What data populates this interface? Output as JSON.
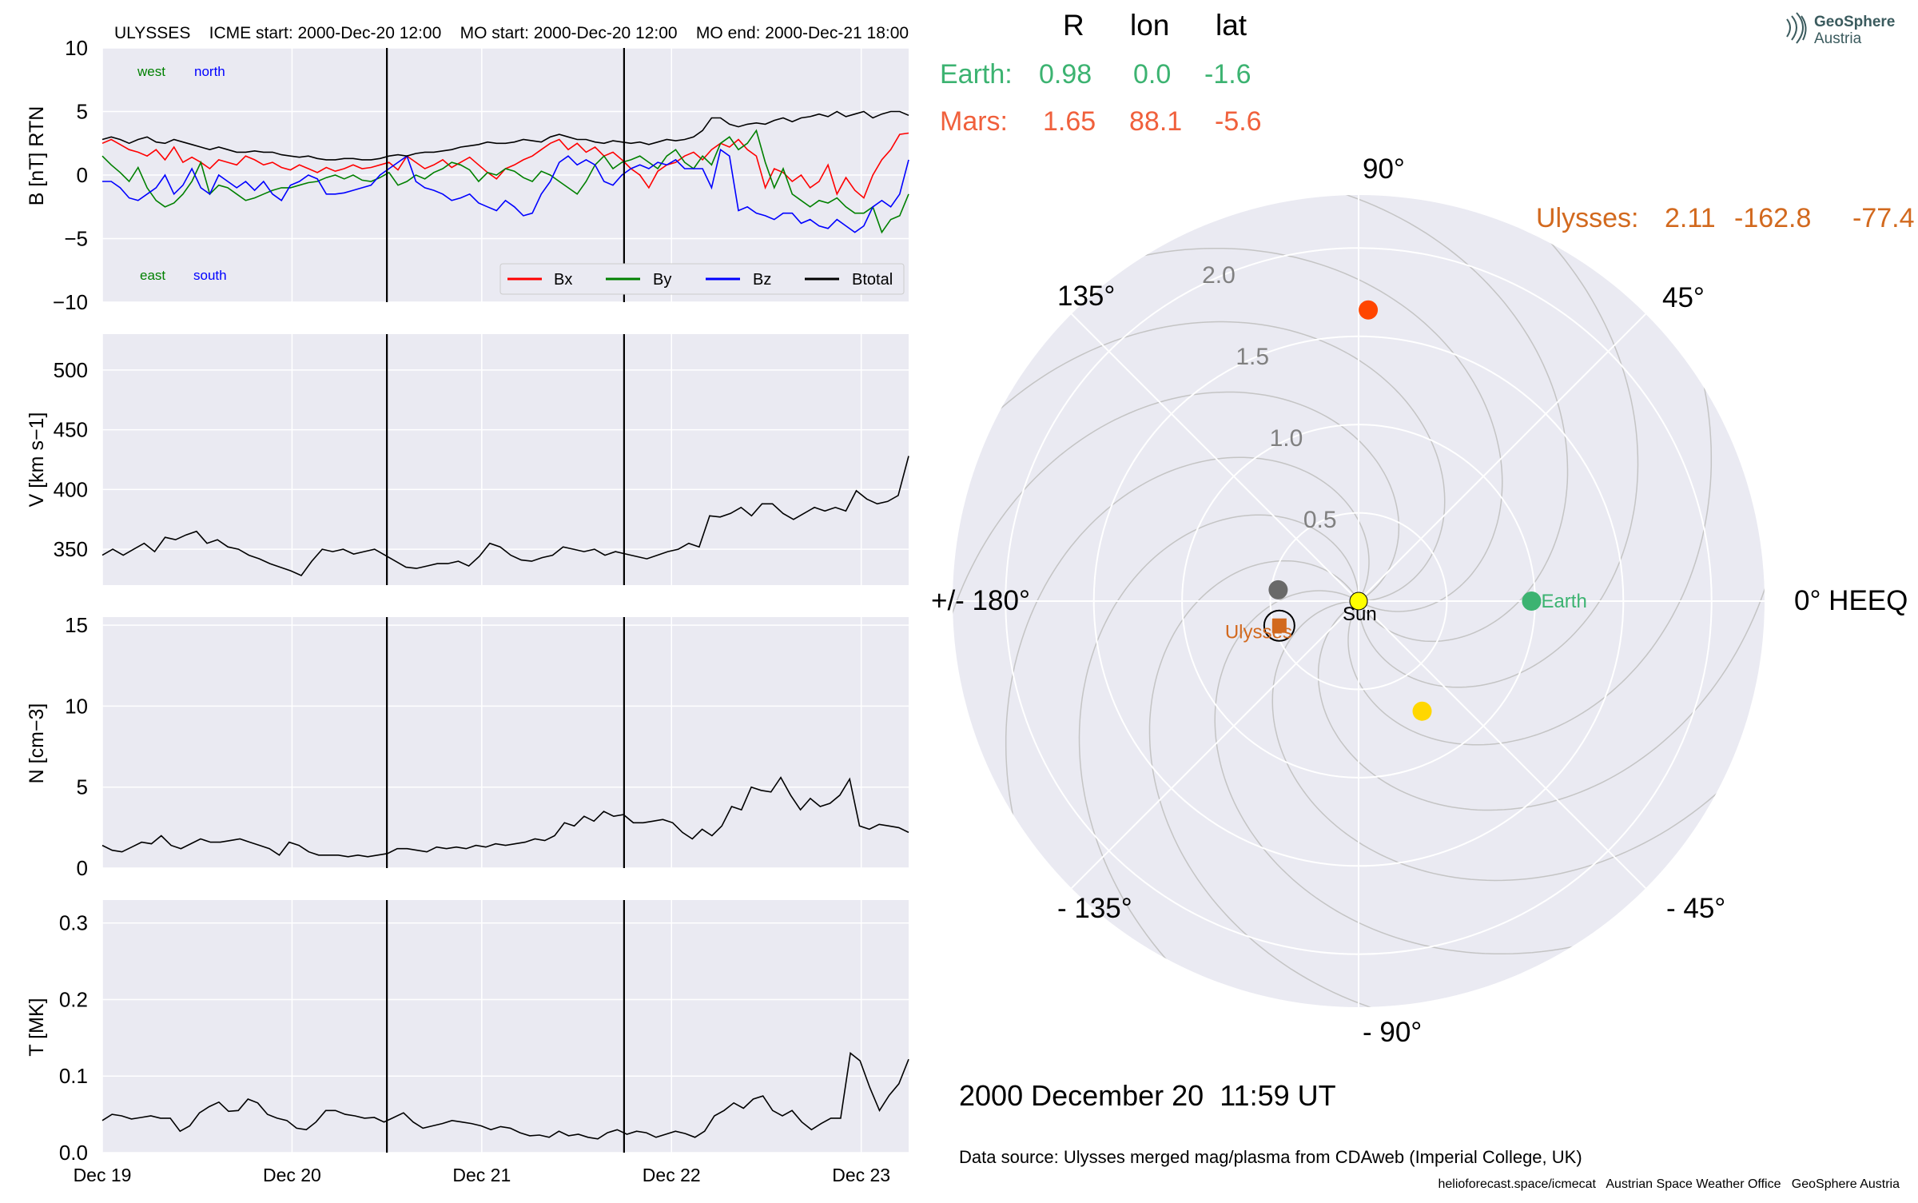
{
  "header": {
    "title": "ULYSSES    ICME start: 2000-Dec-20 12:00    MO start: 2000-Dec-20 12:00    MO end: 2000-Dec-21 18:00"
  },
  "logo": {
    "line1": "GeoSphere",
    "line2": "Austria"
  },
  "position_table": {
    "columns": [
      "R",
      "lon",
      "lat"
    ],
    "earth": {
      "label": "Earth:",
      "R": "0.98",
      "lon": "0.0",
      "lat": "-1.6",
      "color": "#3cb371"
    },
    "mars": {
      "label": "Mars:",
      "R": "1.65",
      "lon": "88.1",
      "lat": "-5.6",
      "color": "#f0603c"
    },
    "ulysses": {
      "label": "Ulysses:",
      "R": "2.11",
      "lon": "-162.8",
      "lat": "-77.4",
      "color": "#d2691e"
    }
  },
  "date_label": "2000 December 20  11:59 UT",
  "data_source": "Data source: Ulysses merged mag/plasma from CDAweb (Imperial College, UK)",
  "footer": "helioforecast.space/icmecat   Austrian Space Weather Office   GeoSphere Austria",
  "colors": {
    "panel_bg": "#eaeaf2",
    "grid": "#ffffff",
    "bx": "#ff0000",
    "by": "#008000",
    "bz": "#0000ff",
    "btotal": "#000000"
  },
  "chart_data": [
    {
      "type": "line",
      "ylabel": "B [nT] RTN",
      "ylim": [
        -10,
        10
      ],
      "yticks": [
        "10",
        "5",
        "0",
        "−5",
        "−10"
      ],
      "corner_labels": [
        "west",
        "north",
        "east",
        "south"
      ],
      "legend": [
        "Bx",
        "By",
        "Bz",
        "Btotal"
      ],
      "legend_placement": "lower-right",
      "xlim_days": "2000-12-19 00:00 to 2000-12-23 06:00",
      "vertical_lines": [
        "2000-12-20 12:00",
        "2000-12-21 18:00"
      ],
      "x": "hourly-ish samples 2000-12-19 to 2000-12-23",
      "series": [
        {
          "name": "Bx",
          "values": [
            2.5,
            2.8,
            2.4,
            2.0,
            1.8,
            1.5,
            2.0,
            1.2,
            2.2,
            1.0,
            1.4,
            1.0,
            0.5,
            1.2,
            1.0,
            0.8,
            1.5,
            1.2,
            0.8,
            1.0,
            0.6,
            0.4,
            0.8,
            0.5,
            0.2,
            0.6,
            0.3,
            0.5,
            0.8,
            0.5,
            0.6,
            0.8,
            1.0,
            0.4,
            1.5,
            1.0,
            0.5,
            0.8,
            1.2,
            0.6,
            1.0,
            1.4,
            0.8,
            0.2,
            -0.3,
            0.5,
            0.8,
            1.2,
            1.5,
            2.0,
            2.5,
            2.8,
            2.0,
            2.5,
            1.8,
            2.2,
            1.5,
            1.8,
            1.2,
            0.5,
            0.0,
            -1.0,
            0.3,
            0.8,
            1.0,
            1.5,
            1.8,
            1.2,
            2.0,
            2.5,
            2.2,
            2.8,
            2.0,
            1.5,
            -1.0,
            0.5,
            0.2,
            -0.5,
            0.0,
            -1.0,
            -0.5,
            0.8,
            -1.5,
            -0.2,
            -1.2,
            -1.8,
            0.0,
            1.2,
            2.0,
            3.2,
            3.3
          ]
        },
        {
          "name": "By",
          "values": [
            1.5,
            0.8,
            0.2,
            -0.5,
            0.6,
            -1.0,
            -2.0,
            -2.5,
            -2.2,
            -1.5,
            -0.5,
            1.0,
            -1.5,
            -0.8,
            -1.0,
            -1.5,
            -2.0,
            -1.8,
            -1.5,
            -1.2,
            -1.0,
            -1.0,
            -0.8,
            -0.6,
            -0.5,
            -0.2,
            0.0,
            -0.3,
            0.0,
            -0.4,
            -0.5,
            -0.2,
            0.2,
            -0.8,
            -0.5,
            0.0,
            -0.3,
            0.2,
            0.5,
            1.0,
            0.8,
            0.4,
            -0.5,
            0.2,
            0.0,
            0.5,
            0.3,
            -0.2,
            -0.5,
            0.3,
            0.0,
            -0.5,
            -1.0,
            -1.5,
            -0.5,
            0.8,
            1.5,
            0.5,
            1.0,
            1.2,
            1.5,
            1.0,
            0.5,
            1.5,
            2.0,
            1.0,
            0.5,
            1.5,
            0.8,
            2.5,
            3.0,
            2.0,
            2.5,
            3.5,
            1.0,
            -1.0,
            0.5,
            -1.5,
            -2.0,
            -2.5,
            -2.0,
            -2.2,
            -1.8,
            -2.5,
            -3.0,
            -3.0,
            -2.5,
            -4.5,
            -3.5,
            -3.2,
            -1.5
          ]
        },
        {
          "name": "Bz",
          "values": [
            -0.5,
            -0.5,
            -1.0,
            -1.8,
            -2.0,
            -1.5,
            -1.0,
            0.0,
            -1.5,
            -0.8,
            0.5,
            -1.0,
            -1.5,
            0.0,
            -0.5,
            -1.0,
            -0.5,
            -1.2,
            -0.5,
            -1.5,
            -2.0,
            -0.8,
            -0.5,
            0.0,
            -0.3,
            -1.5,
            -1.5,
            -1.4,
            -1.2,
            -1.0,
            -0.8,
            0.0,
            0.5,
            1.0,
            1.5,
            -0.5,
            -1.0,
            -1.2,
            -1.5,
            -2.0,
            -1.8,
            -1.5,
            -2.2,
            -2.5,
            -2.8,
            -2.0,
            -2.5,
            -3.2,
            -3.0,
            -1.5,
            -0.5,
            1.0,
            1.5,
            0.8,
            1.2,
            0.8,
            -0.5,
            -0.8,
            0.0,
            0.5,
            0.8,
            0.5,
            1.0,
            0.8,
            1.2,
            0.5,
            0.5,
            0.5,
            -1.0,
            2.0,
            1.5,
            -2.8,
            -2.5,
            -3.0,
            -3.2,
            -3.5,
            -3.0,
            -3.0,
            -3.8,
            -3.5,
            -4.0,
            -4.2,
            -3.5,
            -4.0,
            -4.5,
            -4.0,
            -2.5,
            -2.0,
            -2.5,
            -1.5,
            1.2
          ]
        },
        {
          "name": "Btotal",
          "values": [
            2.8,
            3.0,
            2.8,
            2.5,
            2.8,
            3.0,
            2.6,
            2.5,
            2.8,
            2.6,
            2.4,
            2.2,
            2.0,
            2.2,
            2.0,
            1.8,
            1.8,
            1.9,
            1.8,
            1.8,
            1.6,
            1.5,
            1.4,
            1.5,
            1.3,
            1.2,
            1.2,
            1.3,
            1.3,
            1.2,
            1.2,
            1.3,
            1.5,
            1.6,
            1.5,
            1.7,
            1.8,
            1.8,
            1.9,
            2.0,
            2.2,
            2.3,
            2.4,
            2.6,
            2.5,
            2.5,
            2.6,
            2.8,
            2.7,
            2.6,
            3.0,
            3.2,
            3.0,
            2.8,
            2.8,
            2.6,
            2.5,
            2.7,
            2.6,
            2.5,
            2.6,
            2.4,
            2.6,
            2.8,
            2.7,
            2.8,
            3.0,
            3.5,
            4.5,
            4.5,
            4.0,
            3.8,
            4.0,
            4.1,
            4.0,
            4.3,
            4.5,
            4.2,
            4.5,
            4.6,
            4.8,
            4.6,
            5.0,
            4.6,
            4.8,
            5.0,
            4.5,
            4.8,
            5.0,
            5.0,
            4.7
          ]
        }
      ]
    },
    {
      "type": "line",
      "ylabel": "V [km s−1]",
      "ylim": [
        320,
        530
      ],
      "yticks": [
        "500",
        "450",
        "400",
        "350"
      ],
      "series": [
        {
          "name": "V",
          "values": [
            345,
            350,
            345,
            350,
            355,
            348,
            360,
            358,
            362,
            365,
            355,
            358,
            352,
            350,
            345,
            342,
            338,
            335,
            332,
            328,
            340,
            350,
            348,
            350,
            346,
            348,
            350,
            345,
            340,
            335,
            334,
            336,
            338,
            338,
            340,
            336,
            344,
            355,
            352,
            345,
            341,
            340,
            343,
            345,
            352,
            350,
            348,
            350,
            345,
            348,
            346,
            344,
            342,
            345,
            348,
            350,
            355,
            352,
            378,
            377,
            380,
            385,
            378,
            388,
            388,
            380,
            375,
            380,
            385,
            382,
            385,
            382,
            399,
            392,
            388,
            390,
            395,
            428
          ]
        }
      ]
    },
    {
      "type": "line",
      "ylabel": "N [cm−3]",
      "ylim": [
        0,
        15.5
      ],
      "yticks": [
        "15",
        "10",
        "5",
        "0"
      ],
      "series": [
        {
          "name": "N",
          "values": [
            1.4,
            1.1,
            1.0,
            1.3,
            1.6,
            1.5,
            2.0,
            1.4,
            1.2,
            1.5,
            1.8,
            1.6,
            1.6,
            1.7,
            1.8,
            1.6,
            1.4,
            1.2,
            0.8,
            1.6,
            1.4,
            1.0,
            0.8,
            0.8,
            0.8,
            0.7,
            0.8,
            0.7,
            0.8,
            0.9,
            1.2,
            1.2,
            1.1,
            1.0,
            1.3,
            1.2,
            1.3,
            1.2,
            1.4,
            1.3,
            1.5,
            1.4,
            1.5,
            1.6,
            1.8,
            1.7,
            2.0,
            2.8,
            2.6,
            3.2,
            2.9,
            3.5,
            3.2,
            3.3,
            2.8,
            2.8,
            2.9,
            3.0,
            2.8,
            2.2,
            1.8,
            2.4,
            2.0,
            2.6,
            3.8,
            3.6,
            5.0,
            4.8,
            4.7,
            5.6,
            4.5,
            3.6,
            4.3,
            3.8,
            4.0,
            4.5,
            5.5,
            2.6,
            2.4,
            2.7,
            2.6,
            2.5,
            2.2
          ]
        }
      ]
    },
    {
      "type": "line",
      "ylabel": "T [MK]",
      "ylim": [
        0,
        0.33
      ],
      "yticks": [
        "0.3",
        "0.2",
        "0.1",
        "0.0"
      ],
      "xticks": [
        "Dec 19",
        "Dec 20",
        "Dec 21",
        "Dec 22",
        "Dec 23"
      ],
      "series": [
        {
          "name": "T",
          "values": [
            0.042,
            0.05,
            0.048,
            0.044,
            0.046,
            0.048,
            0.045,
            0.045,
            0.028,
            0.035,
            0.052,
            0.06,
            0.066,
            0.054,
            0.055,
            0.07,
            0.065,
            0.05,
            0.045,
            0.042,
            0.032,
            0.03,
            0.04,
            0.055,
            0.055,
            0.05,
            0.048,
            0.045,
            0.046,
            0.04,
            0.046,
            0.052,
            0.04,
            0.032,
            0.035,
            0.038,
            0.042,
            0.04,
            0.038,
            0.035,
            0.03,
            0.034,
            0.032,
            0.026,
            0.022,
            0.023,
            0.02,
            0.028,
            0.022,
            0.024,
            0.02,
            0.018,
            0.026,
            0.03,
            0.024,
            0.028,
            0.026,
            0.02,
            0.024,
            0.028,
            0.025,
            0.02,
            0.028,
            0.048,
            0.055,
            0.065,
            0.058,
            0.07,
            0.074,
            0.055,
            0.048,
            0.055,
            0.04,
            0.03,
            0.038,
            0.045,
            0.045,
            0.13,
            0.12,
            0.085,
            0.055,
            0.075,
            0.09,
            0.122
          ]
        }
      ]
    },
    {
      "type": "scatter",
      "subtype": "polar",
      "rticks": [
        "0.5",
        "1.0",
        "1.5",
        "2.0"
      ],
      "angle_labels": [
        "0° HEEQ",
        "45°",
        "90°",
        "135°",
        "+/- 180°",
        "- 135°",
        "- 90°",
        "- 45°"
      ],
      "rmax": 2.3,
      "points": [
        {
          "name": "Sun",
          "r": 0.0,
          "lon_deg": 0,
          "color": "#ffff00"
        },
        {
          "name": "Earth",
          "r": 0.98,
          "lon_deg": 0.0,
          "color": "#3cb371"
        },
        {
          "name": "Mars",
          "r": 1.65,
          "lon_deg": 88.1,
          "color": "#ff4500"
        },
        {
          "name": "Ulysses",
          "r": 0.47,
          "lon_deg": -162.8,
          "color": "#d2691e",
          "marker": "square"
        },
        {
          "name": "",
          "r": 0.46,
          "lon_deg": 172,
          "color": "#696969"
        },
        {
          "name": "",
          "r": 0.72,
          "lon_deg": -60,
          "color": "#ffd700"
        }
      ]
    }
  ]
}
